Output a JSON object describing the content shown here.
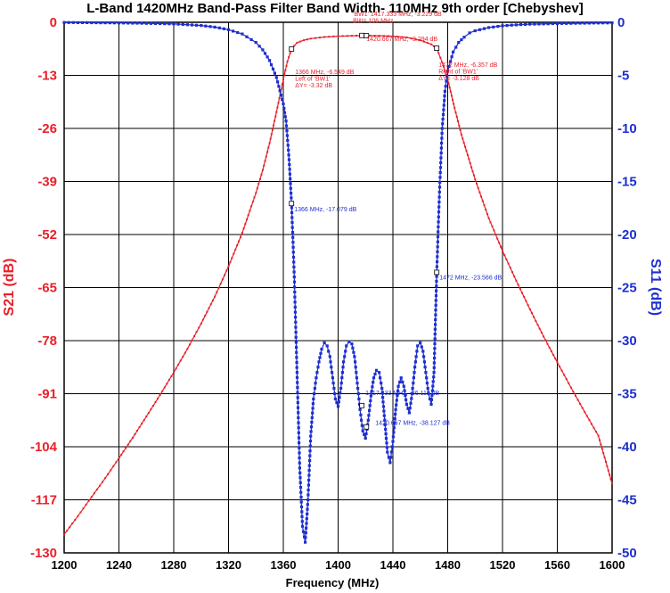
{
  "chart_data": {
    "type": "line",
    "title": "L-Band 1420MHz  Band-Pass Filter Band Width- 110MHz  9th order [Chebyshev]",
    "xlabel": "Frequency (MHz)",
    "ylabel_left": "S21 (dB)",
    "ylabel_right": "S11 (dB)",
    "xlim": [
      1200,
      1600
    ],
    "ylim_left": [
      -130,
      0
    ],
    "ylim_right": [
      -50,
      0
    ],
    "x_ticks": [
      "1200",
      "1240",
      "1280",
      "1320",
      "1360",
      "1400",
      "1440",
      "1480",
      "1520",
      "1560",
      "1600"
    ],
    "y_ticks_left": [
      "0",
      "-13",
      "-26",
      "-39",
      "-52",
      "-65",
      "-78",
      "-91",
      "-104",
      "-117",
      "-130"
    ],
    "y_ticks_right": [
      "0",
      "-5",
      "-10",
      "-15",
      "-20",
      "-25",
      "-30",
      "-35",
      "-40",
      "-45",
      "-50"
    ],
    "grid": true,
    "colors": {
      "s21": "#e8202a",
      "s11": "#1e2fd0",
      "grid": "#000000"
    },
    "series": [
      {
        "name": "S21",
        "axis": "left",
        "x": [
          1200,
          1210,
          1220,
          1230,
          1240,
          1250,
          1260,
          1270,
          1280,
          1290,
          1300,
          1310,
          1320,
          1330,
          1340,
          1345,
          1350,
          1355,
          1360,
          1363,
          1366,
          1370,
          1375,
          1380,
          1390,
          1400,
          1410,
          1420,
          1430,
          1440,
          1450,
          1460,
          1468,
          1472,
          1476,
          1480,
          1485,
          1490,
          1500,
          1510,
          1520,
          1530,
          1540,
          1550,
          1560,
          1570,
          1580,
          1590,
          1600
        ],
        "values": [
          -125.5,
          -121,
          -116.3,
          -111.7,
          -106.8,
          -101.8,
          -96.6,
          -91.3,
          -85.8,
          -80,
          -73.8,
          -67.2,
          -59.8,
          -51.6,
          -41.8,
          -36.2,
          -29.6,
          -22,
          -14,
          -9.6,
          -6.5,
          -5,
          -4.4,
          -4,
          -3.6,
          -3.4,
          -3.3,
          -3.25,
          -3.3,
          -3.4,
          -3.7,
          -4.4,
          -5.4,
          -6.4,
          -9.8,
          -14,
          -21,
          -27.5,
          -38.5,
          -48,
          -56,
          -63.3,
          -70.3,
          -77,
          -83.3,
          -89.5,
          -95.5,
          -101.3,
          -113
        ]
      },
      {
        "name": "S11",
        "axis": "right",
        "x": [
          1200,
          1220,
          1240,
          1260,
          1280,
          1300,
          1310,
          1320,
          1330,
          1340,
          1345,
          1350,
          1355,
          1360,
          1362,
          1364,
          1366,
          1368,
          1370,
          1372,
          1374,
          1376,
          1378,
          1380,
          1382,
          1384,
          1386,
          1388,
          1390,
          1392,
          1394,
          1396,
          1398,
          1400,
          1402,
          1404,
          1406,
          1408,
          1410,
          1412,
          1414,
          1416,
          1418,
          1420,
          1422,
          1424,
          1426,
          1428,
          1430,
          1432,
          1434,
          1436,
          1438,
          1440,
          1442,
          1444,
          1446,
          1448,
          1450,
          1452,
          1454,
          1456,
          1458,
          1460,
          1462,
          1464,
          1466,
          1468,
          1470,
          1472,
          1474,
          1476,
          1478,
          1480,
          1484,
          1488,
          1492,
          1496,
          1500,
          1510,
          1520,
          1530,
          1540,
          1560,
          1580,
          1600
        ],
        "values": [
          -0.02,
          -0.04,
          -0.06,
          -0.1,
          -0.15,
          -0.3,
          -0.45,
          -0.7,
          -1.1,
          -1.9,
          -2.6,
          -3.6,
          -5.2,
          -7.7,
          -9.3,
          -12.5,
          -17,
          -24,
          -33,
          -42,
          -47.5,
          -49,
          -45,
          -39,
          -35.5,
          -33.5,
          -32,
          -30.8,
          -30.2,
          -30.5,
          -31.5,
          -33.5,
          -35.5,
          -36.2,
          -34.5,
          -32,
          -30.5,
          -30.1,
          -30.3,
          -31.5,
          -34,
          -36.5,
          -38.5,
          -39.2,
          -37.5,
          -35.2,
          -33.5,
          -32.8,
          -33,
          -34.5,
          -37.5,
          -40.5,
          -41.5,
          -39.5,
          -36.5,
          -34.3,
          -33.5,
          -34.3,
          -36,
          -36.8,
          -35,
          -32.5,
          -30.5,
          -30.2,
          -31,
          -33,
          -35,
          -36,
          -33,
          -23.5,
          -16,
          -10,
          -6.5,
          -4.6,
          -2.8,
          -1.9,
          -1.4,
          -1.0,
          -0.8,
          -0.5,
          -0.33,
          -0.24,
          -0.18,
          -0.12,
          -0.08,
          -0.05
        ]
      }
    ],
    "annotations": [
      {
        "id": "bw-top",
        "lines": [
          "'BW1' 1417.333 MHz, -3.229 dB",
          "BW= 106 MHz"
        ],
        "x": 1417.333,
        "value": -3.229,
        "axis": "left",
        "color": "red"
      },
      {
        "id": "mid-red",
        "lines": [
          "1420.667 MHz, -3.294 dB"
        ],
        "x": 1420.667,
        "value": -3.294,
        "axis": "left",
        "color": "red"
      },
      {
        "id": "left-red",
        "lines": [
          "1366 MHz, -6.549 dB",
          "Left of 'BW1'",
          "ΔY= -3.32 dB"
        ],
        "x": 1366,
        "value": -6.549,
        "axis": "left",
        "color": "red"
      },
      {
        "id": "right-red",
        "lines": [
          "1472 MHz, -6.357 dB",
          "Right of 'BW1'",
          "ΔY= -3.128 dB"
        ],
        "x": 1472,
        "value": -6.357,
        "axis": "left",
        "color": "red"
      },
      {
        "id": "left-blue",
        "lines": [
          "1366 MHz, -17.079 dB"
        ],
        "x": 1366,
        "value": -17.079,
        "axis": "right",
        "color": "blue"
      },
      {
        "id": "right-blue",
        "lines": [
          "1472 MHz, -23.566 dB"
        ],
        "x": 1472,
        "value": -23.566,
        "axis": "right",
        "color": "blue"
      },
      {
        "id": "mid-blue-1",
        "lines": [
          "1417.333 MHz, -36.119 dB"
        ],
        "x": 1417.333,
        "value": -36.119,
        "axis": "right",
        "color": "blue"
      },
      {
        "id": "mid-blue-2",
        "lines": [
          "1420.667 MHz, -38.127 dB"
        ],
        "x": 1420.667,
        "value": -38.127,
        "axis": "right",
        "color": "blue"
      }
    ]
  }
}
